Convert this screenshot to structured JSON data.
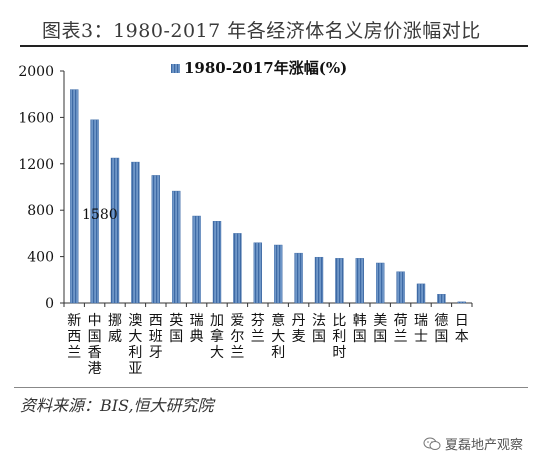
{
  "title": "图表3：1980-2017 年各经济体名义房价涨幅对比",
  "source": "资料来源：BIS,恒大研究院",
  "watermark": {
    "text": "夏磊地产观察",
    "icon": "wechat-icon"
  },
  "chart_data": {
    "type": "bar",
    "legend": "1980-2017年涨幅(%)",
    "legend_position": "top-center",
    "bar_color": "#4a7ab5",
    "ylim": [
      0,
      2000
    ],
    "yticks": [
      "0",
      "400",
      "800",
      "1200",
      "1600",
      "2000"
    ],
    "grid": false,
    "annotation": "1580",
    "categories": [
      "新西兰",
      "中国香港",
      "挪威",
      "澳大利亚",
      "西班牙",
      "英国",
      "瑞典",
      "加拿大",
      "爱尔兰",
      "芬兰",
      "意大利",
      "丹麦",
      "法国",
      "比利时",
      "韩国",
      "美国",
      "荷兰",
      "瑞士",
      "德国",
      "日本"
    ],
    "values": [
      1840,
      1580,
      1250,
      1215,
      1100,
      965,
      750,
      705,
      600,
      520,
      500,
      430,
      395,
      385,
      385,
      345,
      270,
      165,
      75,
      10
    ]
  }
}
